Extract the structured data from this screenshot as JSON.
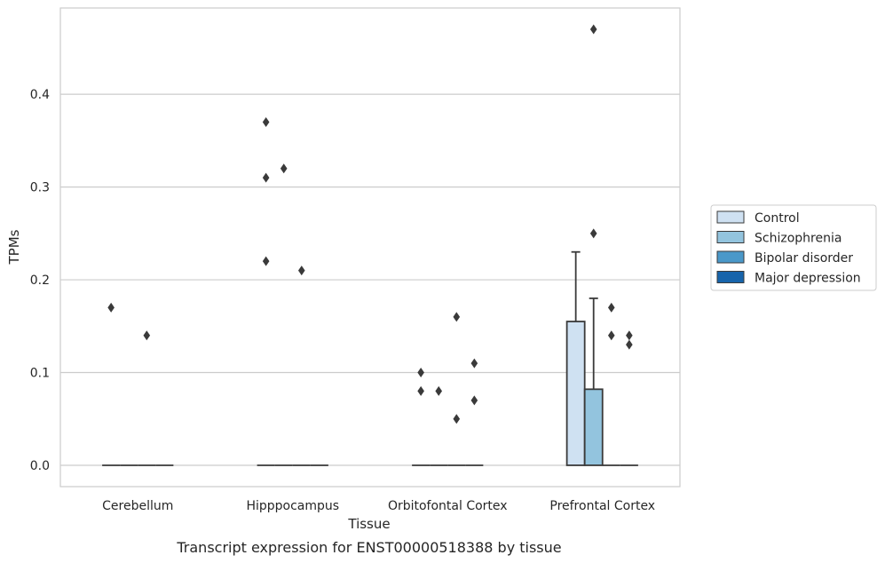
{
  "chart_data": {
    "type": "bar",
    "title": "",
    "caption": "Transcript expression for ENST00000518388 by tissue",
    "xlabel": "Tissue",
    "ylabel": "TPMs",
    "ylim": [
      -0.023,
      0.493
    ],
    "yticks": [
      0.0,
      0.1,
      0.2,
      0.3,
      0.4
    ],
    "ytick_labels": [
      "0.0",
      "0.1",
      "0.2",
      "0.3",
      "0.4"
    ],
    "grid": "horizontal",
    "legend_position": "right",
    "categories": [
      "Cerebellum",
      "Hipppocampus",
      "Orbitofontal Cortex",
      "Prefrontal Cortex"
    ],
    "series": [
      {
        "name": "Control",
        "color": "#cfe1f2",
        "values": [
          0.0,
          0.0,
          0.0,
          0.155
        ],
        "error_upper": [
          null,
          null,
          null,
          0.23
        ]
      },
      {
        "name": "Schizophrenia",
        "color": "#93c4de",
        "values": [
          0.0,
          0.0,
          0.0,
          0.082
        ],
        "error_upper": [
          null,
          null,
          null,
          0.18
        ]
      },
      {
        "name": "Bipolar disorder",
        "color": "#4a98c9",
        "values": [
          0.0,
          0.0,
          0.0,
          0.0
        ],
        "error_upper": [
          null,
          null,
          null,
          null
        ]
      },
      {
        "name": "Major depression",
        "color": "#1764ab",
        "values": [
          0.0,
          0.0,
          0.0,
          0.0
        ],
        "error_upper": [
          null,
          null,
          null,
          null
        ]
      }
    ],
    "outliers": [
      {
        "category": "Cerebellum",
        "series": "Control",
        "value": 0.17
      },
      {
        "category": "Cerebellum",
        "series": "Bipolar disorder",
        "value": 0.14
      },
      {
        "category": "Hipppocampus",
        "series": "Control",
        "value": 0.37
      },
      {
        "category": "Hipppocampus",
        "series": "Control",
        "value": 0.31
      },
      {
        "category": "Hipppocampus",
        "series": "Control",
        "value": 0.22
      },
      {
        "category": "Hipppocampus",
        "series": "Schizophrenia",
        "value": 0.32
      },
      {
        "category": "Hipppocampus",
        "series": "Bipolar disorder",
        "value": 0.21
      },
      {
        "category": "Orbitofontal Cortex",
        "series": "Control",
        "value": 0.1
      },
      {
        "category": "Orbitofontal Cortex",
        "series": "Control",
        "value": 0.08
      },
      {
        "category": "Orbitofontal Cortex",
        "series": "Schizophrenia",
        "value": 0.08
      },
      {
        "category": "Orbitofontal Cortex",
        "series": "Bipolar disorder",
        "value": 0.16
      },
      {
        "category": "Orbitofontal Cortex",
        "series": "Bipolar disorder",
        "value": 0.05
      },
      {
        "category": "Orbitofontal Cortex",
        "series": "Major depression",
        "value": 0.11
      },
      {
        "category": "Orbitofontal Cortex",
        "series": "Major depression",
        "value": 0.07
      },
      {
        "category": "Prefrontal Cortex",
        "series": "Schizophrenia",
        "value": 0.47
      },
      {
        "category": "Prefrontal Cortex",
        "series": "Schizophrenia",
        "value": 0.25
      },
      {
        "category": "Prefrontal Cortex",
        "series": "Bipolar disorder",
        "value": 0.17
      },
      {
        "category": "Prefrontal Cortex",
        "series": "Bipolar disorder",
        "value": 0.14
      },
      {
        "category": "Prefrontal Cortex",
        "series": "Major depression",
        "value": 0.14
      },
      {
        "category": "Prefrontal Cortex",
        "series": "Major depression",
        "value": 0.13
      }
    ],
    "colors": {
      "grid": "#cccccc",
      "frame": "#cccccc",
      "edge": "#3a3a3a",
      "marker": "#3a3a3a"
    }
  }
}
